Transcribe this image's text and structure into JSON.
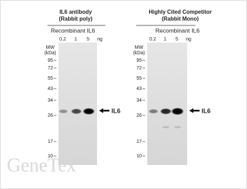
{
  "panels": [
    {
      "title": "IL6 antibody",
      "subtitle": "(Rabbit poly)",
      "sample": "Recombinant IL6",
      "lanes": [
        "0.2",
        "1",
        "5"
      ],
      "unit": "ng",
      "mw_title": "MW",
      "mw_unit": "(kDa)",
      "mw": [
        95,
        72,
        55,
        43,
        34,
        26,
        17,
        10
      ],
      "band_label": "IL6"
    },
    {
      "title": "Highly Cited Competitor",
      "subtitle": "(Rabbit Mono)",
      "sample": "Recombinant IL6",
      "lanes": [
        "0.2",
        "1",
        "5"
      ],
      "unit": "ng",
      "mw_title": "MW",
      "mw_unit": "(kDa)",
      "mw": [
        95,
        72,
        55,
        43,
        34,
        26,
        17,
        10
      ],
      "band_label": "IL6"
    }
  ],
  "watermark": "GeneTex"
}
